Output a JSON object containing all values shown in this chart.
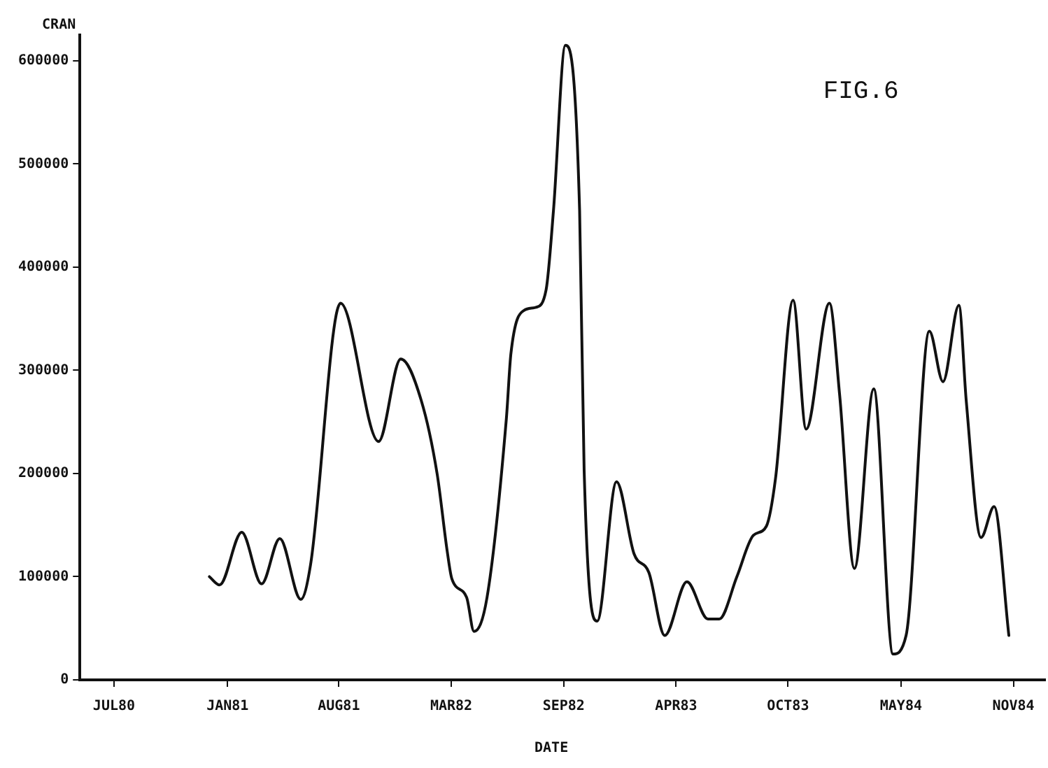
{
  "chart_data": {
    "type": "line",
    "xlabel": "DATE",
    "ylabel": "CRAN",
    "annotations": [
      "FIG.6"
    ],
    "x": [
      "1980-12-30",
      "1981-01-17",
      "1981-02-25",
      "1981-04-01",
      "1981-05-03",
      "1981-06-09",
      "1981-06-26",
      "1981-08-18",
      "1981-10-24",
      "1981-12-02",
      "1982-01-07",
      "1982-02-04",
      "1982-02-22",
      "1982-03-02",
      "1982-03-28",
      "1982-04-10",
      "1982-05-03",
      "1982-06-06",
      "1982-06-14",
      "1982-07-07",
      "1982-07-28",
      "1982-08-15",
      "1982-08-28",
      "1982-09-18",
      "1982-10-13",
      "1982-10-21",
      "1982-11-13",
      "1982-12-17",
      "1983-01-17",
      "1983-02-12",
      "1983-03-12",
      "1983-04-20",
      "1983-05-27",
      "1983-06-16",
      "1983-07-17",
      "1983-08-15",
      "1983-09-07",
      "1983-09-23",
      "1983-10-24",
      "1983-11-16",
      "1983-12-27",
      "1984-01-14",
      "1984-02-09",
      "1984-03-14",
      "1984-04-17",
      "1984-05-10",
      "1984-06-20",
      "1984-07-14",
      "1984-08-11",
      "1984-08-24",
      "1984-09-19",
      "1984-10-12",
      "1984-11-07"
    ],
    "series": [
      {
        "color": "#111111",
        "values": [
          100000,
          92000,
          143000,
          93000,
          137000,
          78000,
          111000,
          365000,
          231000,
          311000,
          271000,
          200000,
          124000,
          98000,
          80000,
          47000,
          80000,
          253000,
          316000,
          358000,
          361000,
          378000,
          455000,
          615000,
          455000,
          203000,
          57000,
          192000,
          122000,
          104000,
          43000,
          95000,
          59000,
          59000,
          100000,
          140000,
          149000,
          195000,
          368000,
          243000,
          365000,
          276000,
          108000,
          282000,
          25000,
          43000,
          338000,
          289000,
          363000,
          270000,
          138000,
          168000,
          43000
        ]
      }
    ],
    "xlim": [
      "1980-05-16",
      "1985-01-10"
    ],
    "xticks": [
      {
        "value": "1980-07-15",
        "label": "JUL80"
      },
      {
        "value": "1981-01-31",
        "label": "JAN81"
      },
      {
        "value": "1981-08-15",
        "label": "AUG81"
      },
      {
        "value": "1982-03-01",
        "label": "MAR82"
      },
      {
        "value": "1982-09-15",
        "label": "SEP82"
      },
      {
        "value": "1983-04-01",
        "label": "APR83"
      },
      {
        "value": "1983-10-15",
        "label": "OCT83"
      },
      {
        "value": "1984-05-01",
        "label": "MAY84"
      },
      {
        "value": "1984-11-15",
        "label": "NOV84"
      }
    ],
    "ylim": [
      0,
      625000
    ],
    "yticks": [
      0,
      100000,
      200000,
      300000,
      400000,
      500000,
      600000
    ],
    "grid": false,
    "legend": false,
    "marker": "none",
    "line_style": "solid"
  }
}
